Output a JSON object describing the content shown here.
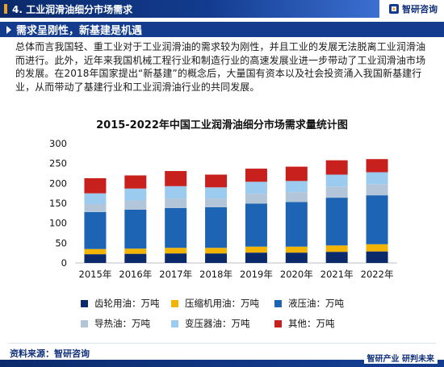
{
  "header": {
    "title": "4. 工业润滑油细分市场需求",
    "brand": "智研咨询"
  },
  "section": {
    "title": "需求呈刚性，新基建是机遇"
  },
  "paragraph": "总体而言我国轻、重工业对于工业润滑油的需求较为刚性，并且工业的发展无法脱离工业润滑油而进行。此外，近年来我国机械工程行业和制造行业的高速发展业进一步带动了工业润滑油市场的发展。在2018年国家提出“新基建”的概念后，大量国有资本以及社会投资涌入我国新基建行业，从而带动了基建行业和工业润滑油行业的共同发展。",
  "chart_data": {
    "type": "bar",
    "stacked": true,
    "title": "2015-2022年中国工业润滑油细分市场需求量统计图",
    "categories": [
      "2015年",
      "2016年",
      "2017年",
      "2018年",
      "2019年",
      "2020年",
      "2021年",
      "2022年"
    ],
    "ylim": [
      0,
      300
    ],
    "yticks": [
      0,
      50,
      100,
      150,
      200,
      250,
      300
    ],
    "legend_position": "bottom",
    "grid": false,
    "series": [
      {
        "name": "齿轮用油：万吨",
        "color": "#0b2a6b",
        "values": [
          22,
          23,
          24,
          24,
          26,
          26,
          28,
          29
        ]
      },
      {
        "name": "压缩机用油：万吨",
        "color": "#f2b400",
        "values": [
          13,
          13,
          14,
          14,
          15,
          15,
          16,
          18
        ]
      },
      {
        "name": "液压油：万吨",
        "color": "#1e64b4",
        "values": [
          93,
          98,
          100,
          102,
          108,
          112,
          120,
          123
        ]
      },
      {
        "name": "导热油：万吨",
        "color": "#b3c6d9",
        "values": [
          20,
          23,
          24,
          22,
          25,
          25,
          28,
          28
        ]
      },
      {
        "name": "变压器油：万吨",
        "color": "#9ccbf0",
        "values": [
          27,
          30,
          31,
          28,
          30,
          28,
          30,
          30
        ]
      },
      {
        "name": "其他：万吨",
        "color": "#c8201c",
        "values": [
          38,
          33,
          38,
          32,
          33,
          36,
          36,
          33
        ]
      }
    ]
  },
  "source": "资料来源：智研咨询",
  "footer_brand": "智研产业 研判未来"
}
